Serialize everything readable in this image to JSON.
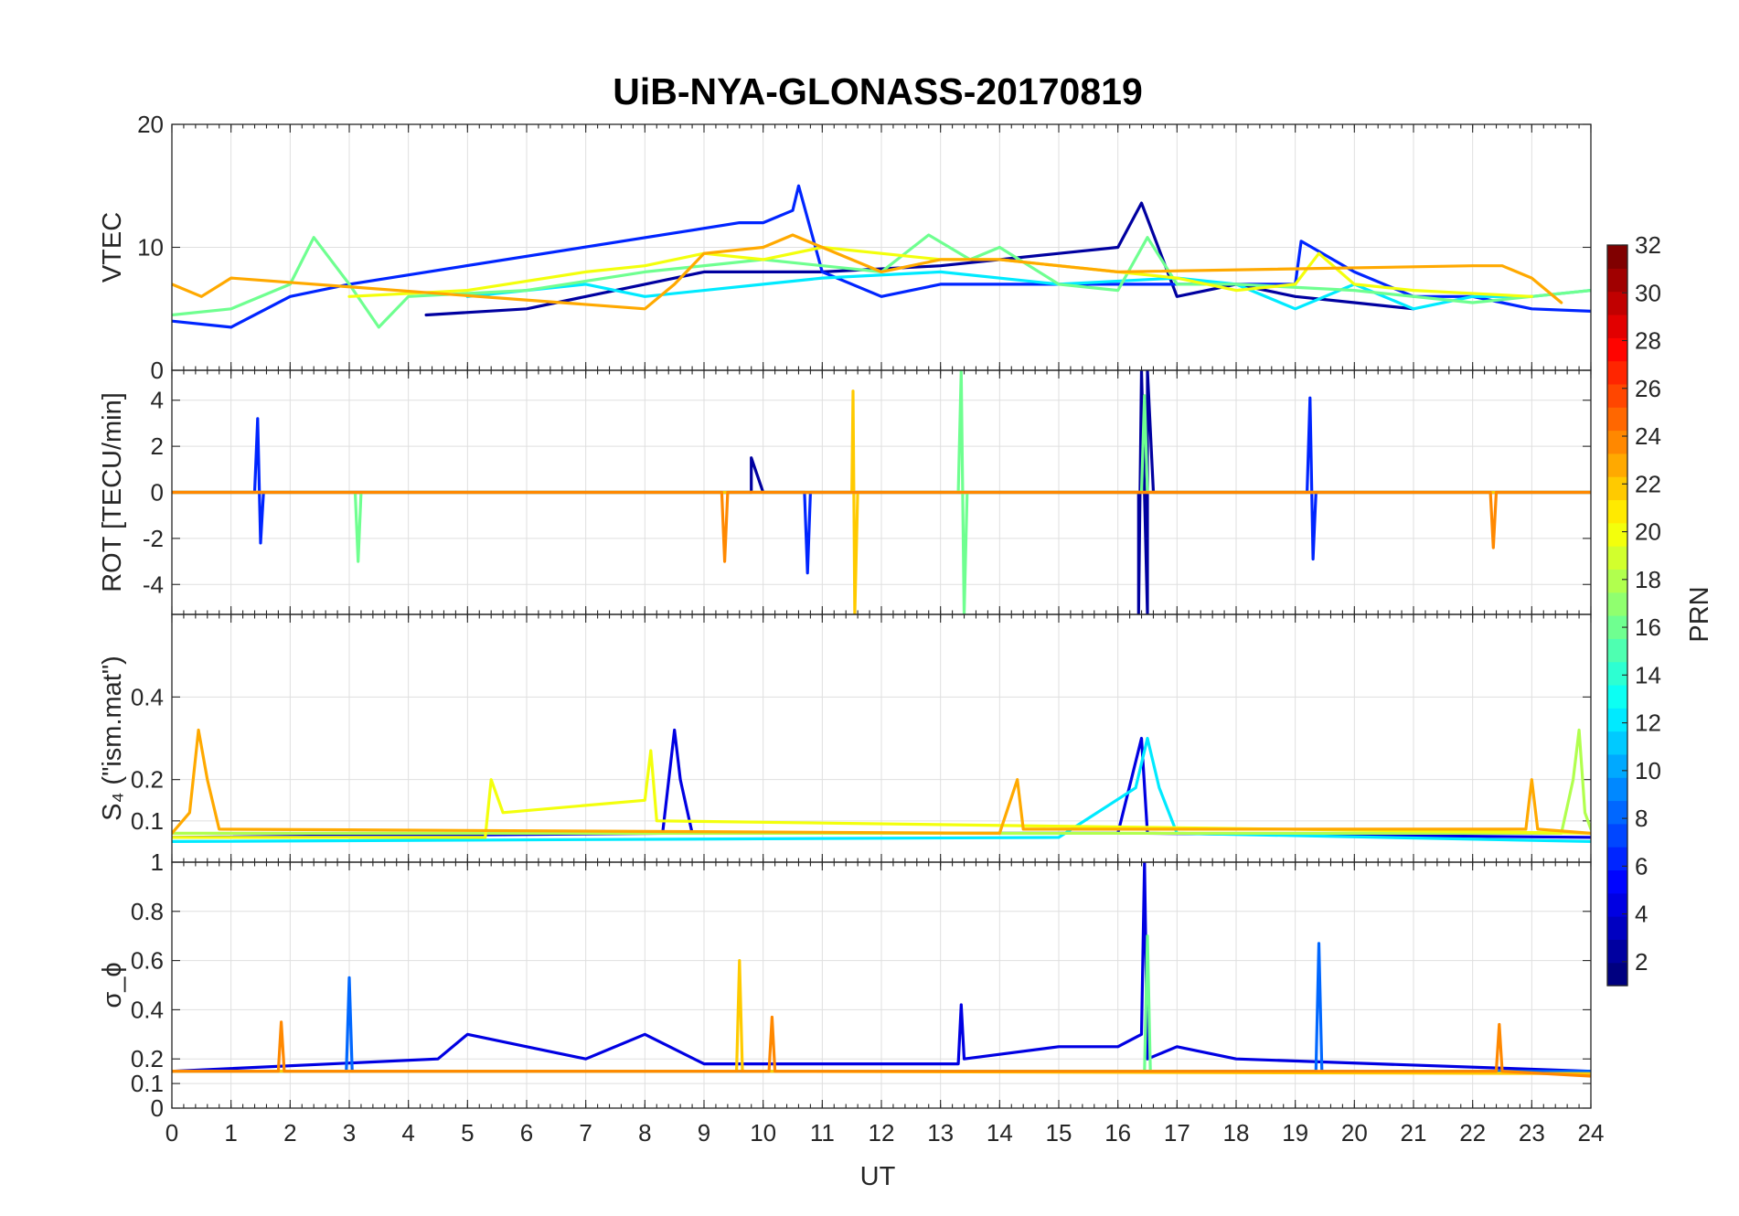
{
  "chart_data": {
    "type": "line",
    "title": "UiB-NYA-GLONASS-20170819",
    "shared_x": {
      "label": "UT",
      "range": [
        0,
        24
      ],
      "ticks": [
        "0",
        "1",
        "2",
        "3",
        "4",
        "5",
        "6",
        "7",
        "8",
        "9",
        "10",
        "11",
        "12",
        "13",
        "14",
        "15",
        "16",
        "17",
        "18",
        "19",
        "20",
        "21",
        "22",
        "23",
        "24"
      ]
    },
    "colorbar": {
      "label": "PRN",
      "range": [
        1,
        32
      ],
      "tick_labels": [
        "2",
        "4",
        "6",
        "8",
        "10",
        "12",
        "14",
        "16",
        "18",
        "20",
        "22",
        "24",
        "26",
        "28",
        "30",
        "32"
      ]
    },
    "panels": [
      {
        "ylabel": "VTEC",
        "ylim": [
          0,
          20
        ],
        "yticks": [
          0,
          10,
          20
        ],
        "ytick_labels": [
          "0",
          "10",
          "20"
        ],
        "series": [
          {
            "prn": 2,
            "x": [
              4.3,
              6,
              8,
              9,
              11,
              13,
              15,
              16,
              16.4,
              17,
              18,
              19,
              20,
              21
            ],
            "y": [
              4.5,
              5,
              7,
              8,
              8,
              8.5,
              9.5,
              10,
              13.6,
              6,
              7,
              6,
              5.5,
              5
            ]
          },
          {
            "prn": 6,
            "x": [
              0,
              1,
              2,
              3,
              9.6,
              10,
              10.5,
              10.6,
              11,
              12,
              13,
              19,
              19.1,
              20,
              21,
              22,
              23,
              24
            ],
            "y": [
              4,
              3.5,
              6,
              7,
              12,
              12,
              13,
              15,
              8,
              6,
              7,
              7,
              10.5,
              8,
              6,
              6,
              5,
              4.8
            ]
          },
          {
            "prn": 12,
            "x": [
              5,
              6,
              7,
              8,
              10,
              11,
              13,
              15,
              17,
              18,
              19,
              20,
              21,
              22,
              23,
              24
            ],
            "y": [
              6,
              6.5,
              7,
              6,
              7,
              7.5,
              8,
              7,
              7.5,
              7,
              5,
              7,
              5,
              6,
              6,
              6.5
            ]
          },
          {
            "prn": 16,
            "x": [
              0,
              1,
              2,
              2.4,
              3,
              3.5,
              4,
              6,
              8,
              10,
              12,
              12.8,
              13.5,
              14,
              15,
              16,
              16.5,
              17,
              18,
              20,
              22,
              24
            ],
            "y": [
              4.5,
              5,
              7,
              10.8,
              7,
              3.5,
              6,
              6.5,
              8,
              9,
              8,
              11,
              9,
              10,
              7,
              6.5,
              10.8,
              7,
              7,
              6.5,
              5.5,
              6.5
            ]
          },
          {
            "prn": 20,
            "x": [
              3,
              5,
              7,
              8,
              9,
              10,
              11,
              13,
              14,
              16,
              17,
              18,
              19,
              19.4,
              20,
              21,
              23
            ],
            "y": [
              6,
              6.5,
              8,
              8.5,
              9.5,
              9,
              10,
              9,
              9,
              8,
              7.5,
              6.5,
              7,
              9.5,
              7,
              6.5,
              6
            ]
          },
          {
            "prn": 23,
            "x": [
              0,
              0.5,
              1,
              8,
              8.5,
              9,
              10,
              10.5,
              11,
              12,
              13,
              14,
              16,
              22,
              22.5,
              23,
              23.5
            ],
            "y": [
              7,
              6,
              7.5,
              5,
              7,
              9.5,
              10,
              11,
              10,
              8,
              9,
              9,
              8,
              8.5,
              8.5,
              7.5,
              5.5
            ]
          }
        ]
      },
      {
        "ylabel": "ROT [TECU/min]",
        "ylim": [
          -5.3,
          5.3
        ],
        "yticks": [
          -4,
          -2,
          0,
          2,
          4
        ],
        "ytick_labels": [
          "-4",
          "-2",
          "0",
          "2",
          "4"
        ],
        "series": [
          {
            "prn": 2,
            "x": [
              0,
              9.8,
              9.8,
              10,
              16.35,
              16.35,
              16.4,
              16.5,
              16.5,
              16.6,
              19,
              24
            ],
            "y": [
              0,
              0,
              1.5,
              0,
              0,
              -5.3,
              5.3,
              -5.3,
              5.3,
              0,
              0,
              0
            ]
          },
          {
            "prn": 6,
            "x": [
              0,
              1.4,
              1.45,
              1.5,
              1.55,
              10.7,
              10.75,
              10.8,
              19.2,
              19.25,
              19.3,
              19.35,
              24
            ],
            "y": [
              0,
              0,
              3.2,
              -2.2,
              0,
              0,
              -3.5,
              0,
              0,
              4.1,
              -2.9,
              0,
              0
            ]
          },
          {
            "prn": 16,
            "x": [
              0,
              3.1,
              3.15,
              3.2,
              13.3,
              13.35,
              13.4,
              13.45,
              16.4,
              16.45,
              16.5,
              24
            ],
            "y": [
              0,
              0,
              -3,
              0,
              0,
              5.3,
              -5.3,
              0,
              0,
              4.2,
              0,
              0
            ]
          },
          {
            "prn": 22,
            "x": [
              0,
              11.5,
              11.52,
              11.55,
              11.6,
              24
            ],
            "y": [
              0,
              0,
              4.4,
              -5.3,
              0,
              0
            ]
          },
          {
            "prn": 24,
            "x": [
              0,
              9.3,
              9.35,
              9.4,
              22.3,
              22.35,
              22.4,
              24
            ],
            "y": [
              0,
              0,
              -3,
              0,
              0,
              -2.4,
              0,
              0
            ]
          }
        ]
      },
      {
        "ylabel": "S₄ (\"ism.mat\")",
        "ylim": [
          0,
          0.6
        ],
        "yticks": [
          0.1,
          0.2,
          0.4
        ],
        "ytick_labels": [
          "0.1",
          "0.2",
          "0.4"
        ],
        "series": [
          {
            "prn": 4,
            "x": [
              0,
              8.3,
              8.5,
              8.6,
              8.8,
              16,
              16.4,
              16.5,
              24
            ],
            "y": [
              0.06,
              0.07,
              0.32,
              0.2,
              0.07,
              0.07,
              0.3,
              0.07,
              0.06
            ]
          },
          {
            "prn": 12,
            "x": [
              0,
              15,
              16.3,
              16.5,
              16.7,
              17,
              24
            ],
            "y": [
              0.05,
              0.06,
              0.18,
              0.3,
              0.18,
              0.07,
              0.05
            ]
          },
          {
            "prn": 18,
            "x": [
              0,
              23.5,
              23.7,
              23.8,
              23.9,
              24
            ],
            "y": [
              0.07,
              0.07,
              0.2,
              0.32,
              0.12,
              0.08
            ]
          },
          {
            "prn": 20,
            "x": [
              0,
              5.3,
              5.4,
              5.6,
              8,
              8.1,
              8.2,
              24
            ],
            "y": [
              0.06,
              0.06,
              0.2,
              0.12,
              0.15,
              0.27,
              0.1,
              0.07
            ]
          },
          {
            "prn": 23,
            "x": [
              0,
              0.3,
              0.45,
              0.6,
              0.8,
              14,
              14.3,
              14.4,
              22.9,
              23,
              23.1,
              24
            ],
            "y": [
              0.07,
              0.12,
              0.32,
              0.2,
              0.08,
              0.07,
              0.2,
              0.08,
              0.08,
              0.2,
              0.08,
              0.07
            ]
          }
        ]
      },
      {
        "ylabel": "σ_ϕ",
        "ylim": [
          0,
          1
        ],
        "yticks": [
          0,
          0.1,
          0.2,
          0.4,
          0.6,
          0.8,
          1
        ],
        "ytick_labels": [
          "0",
          "0.1",
          "0.2",
          "0.4",
          "0.6",
          "0.8",
          "1"
        ],
        "series": [
          {
            "prn": 4,
            "x": [
              0,
              4.5,
              5,
              6,
              7,
              8,
              9,
              13.3,
              13.35,
              13.4,
              15,
              16,
              16.4,
              16.45,
              16.5,
              17,
              18,
              24
            ],
            "y": [
              0.15,
              0.2,
              0.3,
              0.25,
              0.2,
              0.3,
              0.18,
              0.18,
              0.42,
              0.2,
              0.25,
              0.25,
              0.3,
              1.0,
              0.2,
              0.25,
              0.2,
              0.15
            ]
          },
          {
            "prn": 8,
            "x": [
              0,
              2.95,
              3.0,
              3.05,
              19.35,
              19.4,
              19.45,
              24
            ],
            "y": [
              0.15,
              0.15,
              0.53,
              0.15,
              0.15,
              0.67,
              0.15,
              0.15
            ]
          },
          {
            "prn": 16,
            "x": [
              0,
              16.45,
              16.5,
              16.55,
              24
            ],
            "y": [
              0.15,
              0.15,
              0.7,
              0.15,
              0.14
            ]
          },
          {
            "prn": 22,
            "x": [
              0,
              9.55,
              9.6,
              9.65,
              24
            ],
            "y": [
              0.15,
              0.15,
              0.6,
              0.15,
              0.14
            ]
          },
          {
            "prn": 24,
            "x": [
              0,
              1.8,
              1.85,
              1.9,
              10.1,
              10.15,
              10.2,
              22.4,
              22.45,
              22.5,
              24
            ],
            "y": [
              0.15,
              0.15,
              0.35,
              0.15,
              0.15,
              0.37,
              0.15,
              0.15,
              0.34,
              0.15,
              0.13
            ]
          }
        ]
      }
    ]
  }
}
